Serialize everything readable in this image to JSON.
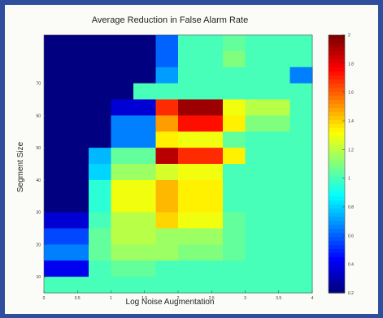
{
  "chart_data": {
    "type": "heatmap",
    "title": "Average Reduction in False Alarm Rate",
    "xlabel": "Log Noise Augmentation",
    "ylabel": "Segment Size",
    "x_tick_labels": [
      "0",
      "0.5",
      "1",
      "1.5",
      "2",
      "2.5",
      "3",
      "3.5",
      "4"
    ],
    "y_tick_labels": [
      "10",
      "20",
      "30",
      "40",
      "50",
      "60",
      "70"
    ],
    "colorbar_tick_labels": [
      "0.2",
      "0.4",
      "0.6",
      "0.8",
      "1",
      "1.2",
      "1.4",
      "1.6",
      "1.8",
      "2"
    ],
    "colormap": "jet",
    "value_range": [
      0.2,
      2.0
    ],
    "n_cols": 12,
    "n_rows": 16,
    "rows_top_to_bottom": [
      [
        0.2,
        0.2,
        0.2,
        0.2,
        0.2,
        0.6,
        1.0,
        1.0,
        1.05,
        1.0,
        1.0,
        1.0
      ],
      [
        0.2,
        0.2,
        0.2,
        0.2,
        0.2,
        0.6,
        1.0,
        1.0,
        1.1,
        1.0,
        1.0,
        1.0
      ],
      [
        0.2,
        0.2,
        0.2,
        0.2,
        0.2,
        0.7,
        1.0,
        1.0,
        1.0,
        1.0,
        1.0,
        0.65
      ],
      [
        0.2,
        0.2,
        0.2,
        0.2,
        1.0,
        1.0,
        1.0,
        1.0,
        1.0,
        1.0,
        1.0,
        1.0
      ],
      [
        0.2,
        0.2,
        0.2,
        0.35,
        0.35,
        1.7,
        1.95,
        1.95,
        1.3,
        1.2,
        1.2,
        1.0
      ],
      [
        0.2,
        0.2,
        0.2,
        0.65,
        0.65,
        1.5,
        1.75,
        1.75,
        1.35,
        1.1,
        1.1,
        1.0
      ],
      [
        0.2,
        0.2,
        0.2,
        0.65,
        0.65,
        1.35,
        1.3,
        1.3,
        1.05,
        1.0,
        1.0,
        1.0
      ],
      [
        0.2,
        0.2,
        0.75,
        1.05,
        1.05,
        1.9,
        1.7,
        1.7,
        1.35,
        1.0,
        1.0,
        1.0
      ],
      [
        0.2,
        0.2,
        0.8,
        1.15,
        1.15,
        1.25,
        1.3,
        1.3,
        1.0,
        1.0,
        1.0,
        1.0
      ],
      [
        0.2,
        0.2,
        0.95,
        1.3,
        1.3,
        1.45,
        1.35,
        1.35,
        1.0,
        1.0,
        1.0,
        1.0
      ],
      [
        0.2,
        0.2,
        0.95,
        1.3,
        1.3,
        1.45,
        1.35,
        1.35,
        1.0,
        1.0,
        1.0,
        1.0
      ],
      [
        0.35,
        0.35,
        1.0,
        1.2,
        1.2,
        1.4,
        1.3,
        1.3,
        1.05,
        1.0,
        1.0,
        1.0
      ],
      [
        0.55,
        0.55,
        1.05,
        1.2,
        1.2,
        1.15,
        1.15,
        1.15,
        1.05,
        1.0,
        1.0,
        1.0
      ],
      [
        0.65,
        0.65,
        1.05,
        1.15,
        1.15,
        1.15,
        1.1,
        1.1,
        1.05,
        1.0,
        1.0,
        1.0
      ],
      [
        0.4,
        0.4,
        1.0,
        1.05,
        1.05,
        1.0,
        1.0,
        1.0,
        1.0,
        1.0,
        1.0,
        1.0
      ],
      [
        1.0,
        1.0,
        1.0,
        1.0,
        1.0,
        1.0,
        1.0,
        1.0,
        1.0,
        1.0,
        1.0,
        1.0
      ]
    ]
  }
}
